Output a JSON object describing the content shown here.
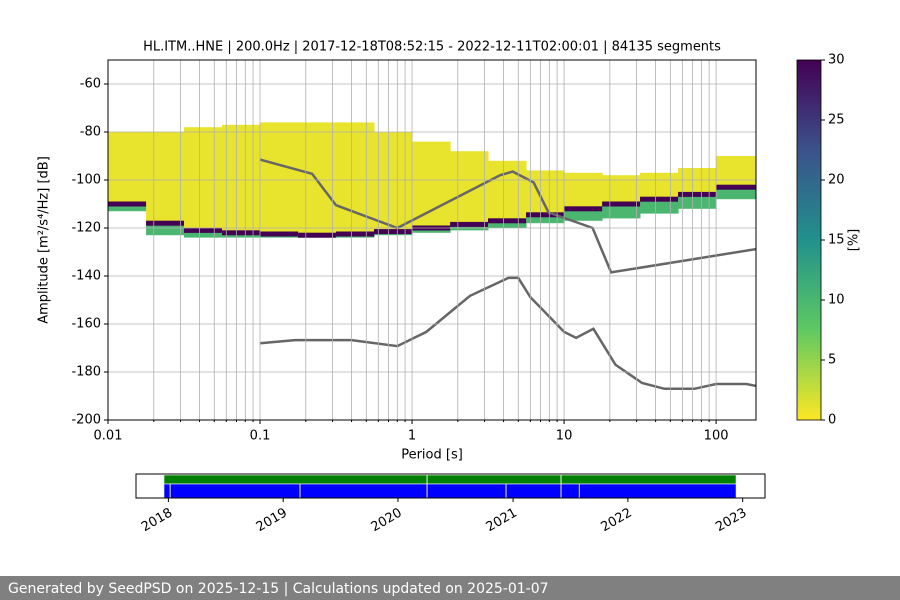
{
  "chart_data": {
    "type": "ppsd",
    "title": "HL.ITM..HNE | 200.0Hz | 2017-12-18T08:52:15 - 2022-12-11T02:00:01 | 84135 segments",
    "x_label": "Period [s]",
    "y_label": "Amplitude [m²/s⁴/Hz] [dB]",
    "log_x": true,
    "grid": true,
    "xlim": [
      0.01,
      183
    ],
    "ylim": [
      -200,
      -50
    ],
    "xticks": [
      0.01,
      0.1,
      1,
      10,
      100
    ],
    "xminorticks": [
      0.02,
      0.03,
      0.04,
      0.05,
      0.06,
      0.07,
      0.08,
      0.09,
      0.2,
      0.3,
      0.4,
      0.5,
      0.6,
      0.7,
      0.8,
      0.9,
      2,
      3,
      4,
      5,
      6,
      7,
      8,
      9,
      20,
      30,
      40,
      50,
      60,
      70,
      80,
      90
    ],
    "yticks": [
      -200,
      -180,
      -160,
      -140,
      -120,
      -100,
      -80,
      -60
    ],
    "density": {
      "period_edges": [
        0.01,
        0.0178,
        0.0316,
        0.0562,
        0.1,
        0.178,
        0.316,
        0.562,
        1,
        1.78,
        3.16,
        5.62,
        10,
        17.8,
        31.6,
        56.2,
        100,
        183
      ],
      "upper": [
        -80,
        -80,
        -78,
        -77,
        -76,
        -76,
        -76,
        -80,
        -84,
        -88,
        -92,
        -96,
        -97,
        -98,
        -97,
        -95,
        -90
      ],
      "mode": [
        -110,
        -118,
        -121,
        -122,
        -122.5,
        -123,
        -122.5,
        -121.5,
        -120,
        -118.5,
        -117,
        -114.5,
        -112,
        -110,
        -108,
        -106,
        -103
      ],
      "lower": [
        -113,
        -123,
        -124,
        -124,
        -124,
        -124,
        -124,
        -123,
        -122,
        -121,
        -120,
        -118,
        -117,
        -116,
        -114,
        -112,
        -108
      ],
      "cloud_percent": 1,
      "tail_percent": 10,
      "mode_percent": 30
    },
    "series": [
      {
        "color": "#666666",
        "x": [
          0.1,
          0.22,
          0.316,
          0.8,
          3.8,
          4.6,
          6.3,
          7.9,
          15.4,
          20.4,
          183
        ],
        "values": [
          -91.5,
          -97.4,
          -110.5,
          -120,
          -98,
          -96.5,
          -101,
          -113.5,
          -120,
          -138.5,
          -128.8
        ]
      },
      {
        "color": "#666666",
        "x": [
          0.1,
          0.17,
          0.4,
          0.8,
          1.24,
          2.4,
          4.3,
          5,
          6,
          10,
          12,
          15.6,
          21.8,
          32.6,
          45.7,
          72,
          100,
          158,
          183
        ],
        "values": [
          -168,
          -166.7,
          -166.7,
          -169.2,
          -163.3,
          -148.3,
          -140.8,
          -140.8,
          -148.8,
          -163.3,
          -165.8,
          -162,
          -177,
          -184.6,
          -187,
          -187,
          -185,
          -185,
          -185.8
        ]
      }
    ],
    "colormap": [
      "#fde725",
      "#5ec962",
      "#21918c",
      "#3b528b",
      "#440154"
    ],
    "clim": [
      0,
      30
    ],
    "cticks": [
      0,
      5,
      10,
      15,
      20,
      25,
      30
    ],
    "colorbar_label": "[%]",
    "timeline": {
      "xlim": [
        "2017-09-20",
        "2023-03-13"
      ],
      "xticks": [
        {
          "value": "2018-01-01",
          "label": "2018"
        },
        {
          "value": "2019-01-01",
          "label": "2019"
        },
        {
          "value": "2020-01-01",
          "label": "2020"
        },
        {
          "value": "2021-01-01",
          "label": "2021"
        },
        {
          "value": "2022-01-01",
          "label": "2022"
        },
        {
          "value": "2023-01-01",
          "label": "2023"
        }
      ],
      "coverage_color": "#008000",
      "coverage": [
        [
          "2017-12-18",
          "2020-04-02"
        ],
        [
          "2020-04-03",
          "2021-06-02"
        ],
        [
          "2021-06-03",
          "2022-12-11"
        ]
      ],
      "data_color": "#0000ff",
      "data": [
        [
          "2017-12-18",
          "2018-01-06"
        ],
        [
          "2018-01-07",
          "2019-02-23"
        ],
        [
          "2019-02-24",
          "2020-04-02"
        ],
        [
          "2020-04-03",
          "2020-12-09"
        ],
        [
          "2020-12-10",
          "2021-06-02"
        ],
        [
          "2021-06-03",
          "2021-07-30"
        ],
        [
          "2021-07-31",
          "2022-12-11"
        ]
      ]
    }
  },
  "footer": "Generated by SeedPSD on 2025-12-15 | Calculations updated on 2025-01-07"
}
